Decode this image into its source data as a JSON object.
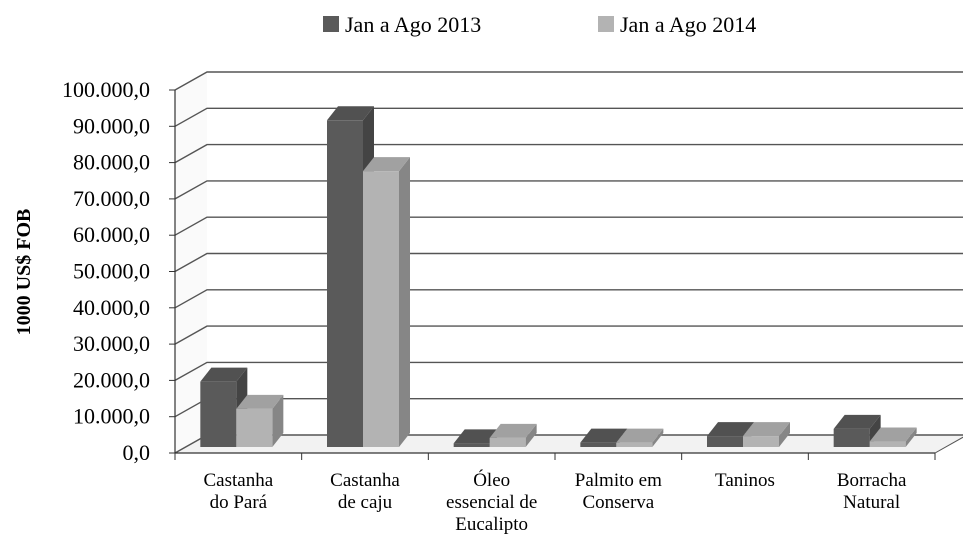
{
  "chart_data": {
    "type": "bar",
    "style": "3d-clustered-column",
    "title": "",
    "xlabel": "",
    "ylabel": "1000 US$ FOB",
    "ylim": [
      0,
      100000
    ],
    "yticks": [
      0,
      10000,
      20000,
      30000,
      40000,
      50000,
      60000,
      70000,
      80000,
      90000,
      100000
    ],
    "ytick_labels": [
      "0,0",
      "10.000,0",
      "20.000,0",
      "30.000,0",
      "40.000,0",
      "50.000,0",
      "60.000,0",
      "70.000,0",
      "80.000,0",
      "90.000,0",
      "100.000,0"
    ],
    "grid": true,
    "legend_position": "top",
    "categories": [
      [
        "Castanha",
        "do Pará"
      ],
      [
        "Castanha",
        "de caju"
      ],
      [
        "Óleo",
        "essencial de",
        "Eucalipto"
      ],
      [
        "Palmito em",
        "Conserva"
      ],
      [
        "Taninos"
      ],
      [
        "Borracha",
        "Natural"
      ]
    ],
    "series": [
      {
        "name": "Jan a Ago 2013",
        "color": "#5a5a5a",
        "values": [
          18000,
          90000,
          1000,
          1200,
          3000,
          5000
        ]
      },
      {
        "name": "Jan a Ago 2014",
        "color": "#b3b3b3",
        "values": [
          10500,
          76000,
          2500,
          1200,
          3000,
          1500
        ]
      }
    ]
  }
}
